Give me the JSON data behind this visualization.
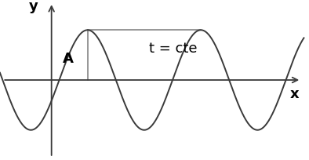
{
  "bg_color": "#ffffff",
  "line_color": "#3a3a3a",
  "axis_color": "#3a3a3a",
  "aux_line_color": "#7a7a7a",
  "xlabel": "x",
  "ylabel": "y",
  "text_label": "t = cte",
  "amplitude_label": "A",
  "figsize": [
    3.94,
    2.04
  ],
  "dpi": 100,
  "text_fontsize": 13,
  "axis_label_fontsize": 13,
  "amplitude_fontsize": 13
}
